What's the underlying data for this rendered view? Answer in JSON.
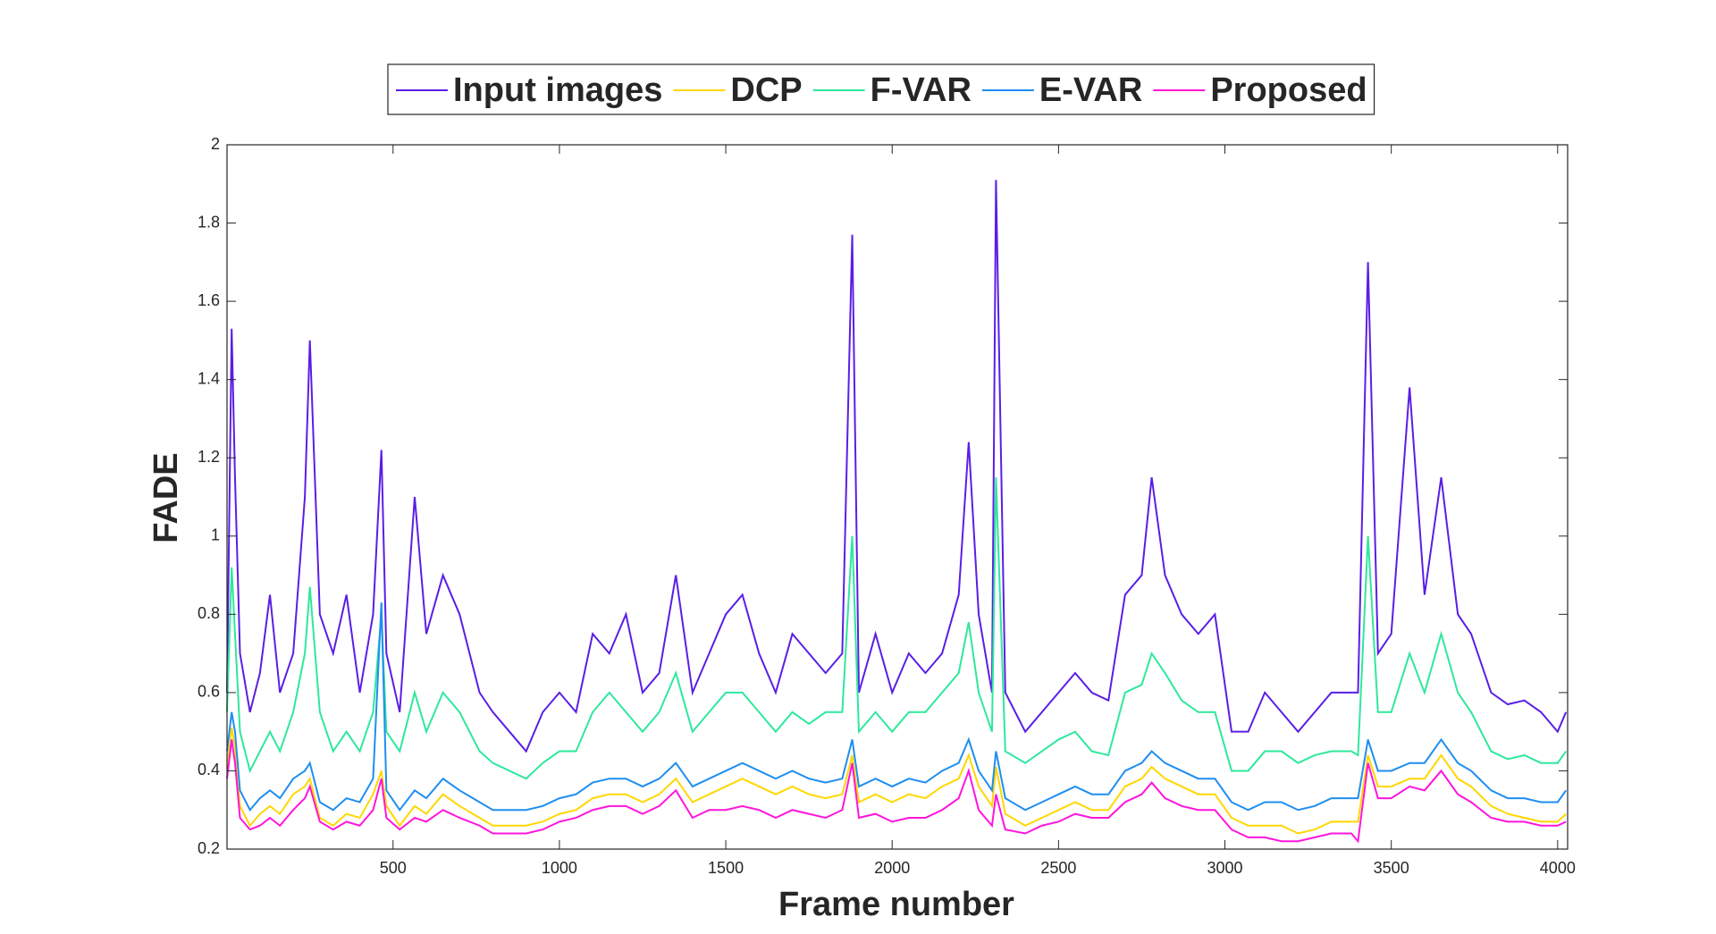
{
  "chart_data": {
    "type": "line",
    "xlabel": "Frame number",
    "ylabel": "FADE",
    "x": [
      1,
      15,
      25,
      40,
      70,
      100,
      130,
      160,
      200,
      235,
      250,
      280,
      320,
      360,
      400,
      440,
      465,
      480,
      520,
      565,
      600,
      650,
      700,
      760,
      800,
      850,
      900,
      950,
      1000,
      1050,
      1100,
      1150,
      1200,
      1250,
      1300,
      1350,
      1400,
      1450,
      1500,
      1550,
      1600,
      1650,
      1700,
      1750,
      1800,
      1850,
      1880,
      1900,
      1950,
      2000,
      2050,
      2100,
      2150,
      2200,
      2230,
      2260,
      2300,
      2312,
      2340,
      2400,
      2450,
      2500,
      2550,
      2600,
      2650,
      2700,
      2750,
      2780,
      2820,
      2870,
      2920,
      2970,
      3020,
      3070,
      3120,
      3170,
      3220,
      3270,
      3320,
      3380,
      3400,
      3430,
      3460,
      3500,
      3555,
      3600,
      3650,
      3700,
      3740,
      3800,
      3850,
      3900,
      3950,
      4000,
      4025
    ],
    "series": [
      {
        "name": "Input images",
        "color": "#5a1ee6",
        "values": [
          0.6,
          1.53,
          1.15,
          0.7,
          0.55,
          0.65,
          0.85,
          0.6,
          0.7,
          1.1,
          1.5,
          0.8,
          0.7,
          0.85,
          0.6,
          0.8,
          1.22,
          0.7,
          0.55,
          1.1,
          0.75,
          0.9,
          0.8,
          0.6,
          0.55,
          0.5,
          0.45,
          0.55,
          0.6,
          0.55,
          0.75,
          0.7,
          0.8,
          0.6,
          0.65,
          0.9,
          0.6,
          0.7,
          0.8,
          0.85,
          0.7,
          0.6,
          0.75,
          0.7,
          0.65,
          0.7,
          1.77,
          0.6,
          0.75,
          0.6,
          0.7,
          0.65,
          0.7,
          0.85,
          1.24,
          0.8,
          0.6,
          1.91,
          0.6,
          0.5,
          0.55,
          0.6,
          0.65,
          0.6,
          0.58,
          0.85,
          0.9,
          1.15,
          0.9,
          0.8,
          0.75,
          0.8,
          0.5,
          0.5,
          0.6,
          0.55,
          0.5,
          0.55,
          0.6,
          0.6,
          0.6,
          1.7,
          0.7,
          0.75,
          1.38,
          0.85,
          1.15,
          0.8,
          0.75,
          0.6,
          0.57,
          0.58,
          0.55,
          0.5,
          0.55
        ]
      },
      {
        "name": "DCP",
        "color": "#ffd700",
        "values": [
          0.41,
          0.51,
          0.46,
          0.31,
          0.26,
          0.29,
          0.31,
          0.29,
          0.34,
          0.36,
          0.38,
          0.28,
          0.26,
          0.29,
          0.28,
          0.34,
          0.4,
          0.31,
          0.26,
          0.31,
          0.29,
          0.34,
          0.31,
          0.28,
          0.26,
          0.26,
          0.26,
          0.27,
          0.29,
          0.3,
          0.33,
          0.34,
          0.34,
          0.32,
          0.34,
          0.38,
          0.32,
          0.34,
          0.36,
          0.38,
          0.36,
          0.34,
          0.36,
          0.34,
          0.33,
          0.34,
          0.44,
          0.32,
          0.34,
          0.32,
          0.34,
          0.33,
          0.36,
          0.38,
          0.44,
          0.36,
          0.31,
          0.41,
          0.29,
          0.26,
          0.28,
          0.3,
          0.32,
          0.3,
          0.3,
          0.36,
          0.38,
          0.41,
          0.38,
          0.36,
          0.34,
          0.34,
          0.28,
          0.26,
          0.26,
          0.26,
          0.24,
          0.25,
          0.27,
          0.27,
          0.27,
          0.44,
          0.36,
          0.36,
          0.38,
          0.38,
          0.44,
          0.38,
          0.36,
          0.31,
          0.29,
          0.28,
          0.27,
          0.27,
          0.29
        ]
      },
      {
        "name": "F-VAR",
        "color": "#2ee89c",
        "values": [
          0.55,
          0.92,
          0.75,
          0.5,
          0.4,
          0.45,
          0.5,
          0.45,
          0.55,
          0.7,
          0.87,
          0.55,
          0.45,
          0.5,
          0.45,
          0.55,
          0.8,
          0.5,
          0.45,
          0.6,
          0.5,
          0.6,
          0.55,
          0.45,
          0.42,
          0.4,
          0.38,
          0.42,
          0.45,
          0.45,
          0.55,
          0.6,
          0.55,
          0.5,
          0.55,
          0.65,
          0.5,
          0.55,
          0.6,
          0.6,
          0.55,
          0.5,
          0.55,
          0.52,
          0.55,
          0.55,
          1.0,
          0.5,
          0.55,
          0.5,
          0.55,
          0.55,
          0.6,
          0.65,
          0.78,
          0.6,
          0.5,
          1.15,
          0.45,
          0.42,
          0.45,
          0.48,
          0.5,
          0.45,
          0.44,
          0.6,
          0.62,
          0.7,
          0.65,
          0.58,
          0.55,
          0.55,
          0.4,
          0.4,
          0.45,
          0.45,
          0.42,
          0.44,
          0.45,
          0.45,
          0.44,
          1.0,
          0.55,
          0.55,
          0.7,
          0.6,
          0.75,
          0.6,
          0.55,
          0.45,
          0.43,
          0.44,
          0.42,
          0.42,
          0.45
        ]
      },
      {
        "name": "E-VAR",
        "color": "#1e8ef0",
        "values": [
          0.45,
          0.55,
          0.5,
          0.35,
          0.3,
          0.33,
          0.35,
          0.33,
          0.38,
          0.4,
          0.42,
          0.32,
          0.3,
          0.33,
          0.32,
          0.38,
          0.83,
          0.35,
          0.3,
          0.35,
          0.33,
          0.38,
          0.35,
          0.32,
          0.3,
          0.3,
          0.3,
          0.31,
          0.33,
          0.34,
          0.37,
          0.38,
          0.38,
          0.36,
          0.38,
          0.42,
          0.36,
          0.38,
          0.4,
          0.42,
          0.4,
          0.38,
          0.4,
          0.38,
          0.37,
          0.38,
          0.48,
          0.36,
          0.38,
          0.36,
          0.38,
          0.37,
          0.4,
          0.42,
          0.48,
          0.4,
          0.35,
          0.45,
          0.33,
          0.3,
          0.32,
          0.34,
          0.36,
          0.34,
          0.34,
          0.4,
          0.42,
          0.45,
          0.42,
          0.4,
          0.38,
          0.38,
          0.32,
          0.3,
          0.32,
          0.32,
          0.3,
          0.31,
          0.33,
          0.33,
          0.33,
          0.48,
          0.4,
          0.4,
          0.42,
          0.42,
          0.48,
          0.42,
          0.4,
          0.35,
          0.33,
          0.33,
          0.32,
          0.32,
          0.35
        ]
      },
      {
        "name": "Proposed",
        "color": "#ff14dc",
        "values": [
          0.38,
          0.48,
          0.42,
          0.28,
          0.25,
          0.26,
          0.28,
          0.26,
          0.3,
          0.33,
          0.36,
          0.27,
          0.25,
          0.27,
          0.26,
          0.3,
          0.38,
          0.28,
          0.25,
          0.28,
          0.27,
          0.3,
          0.28,
          0.26,
          0.24,
          0.24,
          0.24,
          0.25,
          0.27,
          0.28,
          0.3,
          0.31,
          0.31,
          0.29,
          0.31,
          0.35,
          0.28,
          0.3,
          0.3,
          0.31,
          0.3,
          0.28,
          0.3,
          0.29,
          0.28,
          0.3,
          0.42,
          0.28,
          0.29,
          0.27,
          0.28,
          0.28,
          0.3,
          0.33,
          0.4,
          0.3,
          0.26,
          0.34,
          0.25,
          0.24,
          0.26,
          0.27,
          0.29,
          0.28,
          0.28,
          0.32,
          0.34,
          0.37,
          0.33,
          0.31,
          0.3,
          0.3,
          0.25,
          0.23,
          0.23,
          0.22,
          0.22,
          0.23,
          0.24,
          0.24,
          0.22,
          0.42,
          0.33,
          0.33,
          0.36,
          0.35,
          0.4,
          0.34,
          0.32,
          0.28,
          0.27,
          0.27,
          0.26,
          0.26,
          0.27
        ]
      }
    ],
    "xlim": [
      1,
      4030
    ],
    "xticks": [
      500,
      1000,
      1500,
      2000,
      2500,
      3000,
      3500,
      4000
    ],
    "ylim": [
      0.2,
      2
    ],
    "yticks": [
      0.2,
      0.4,
      0.6,
      0.8,
      1,
      1.2,
      1.4,
      1.6,
      1.8,
      2
    ],
    "grid": false,
    "legend": "top-outside"
  }
}
